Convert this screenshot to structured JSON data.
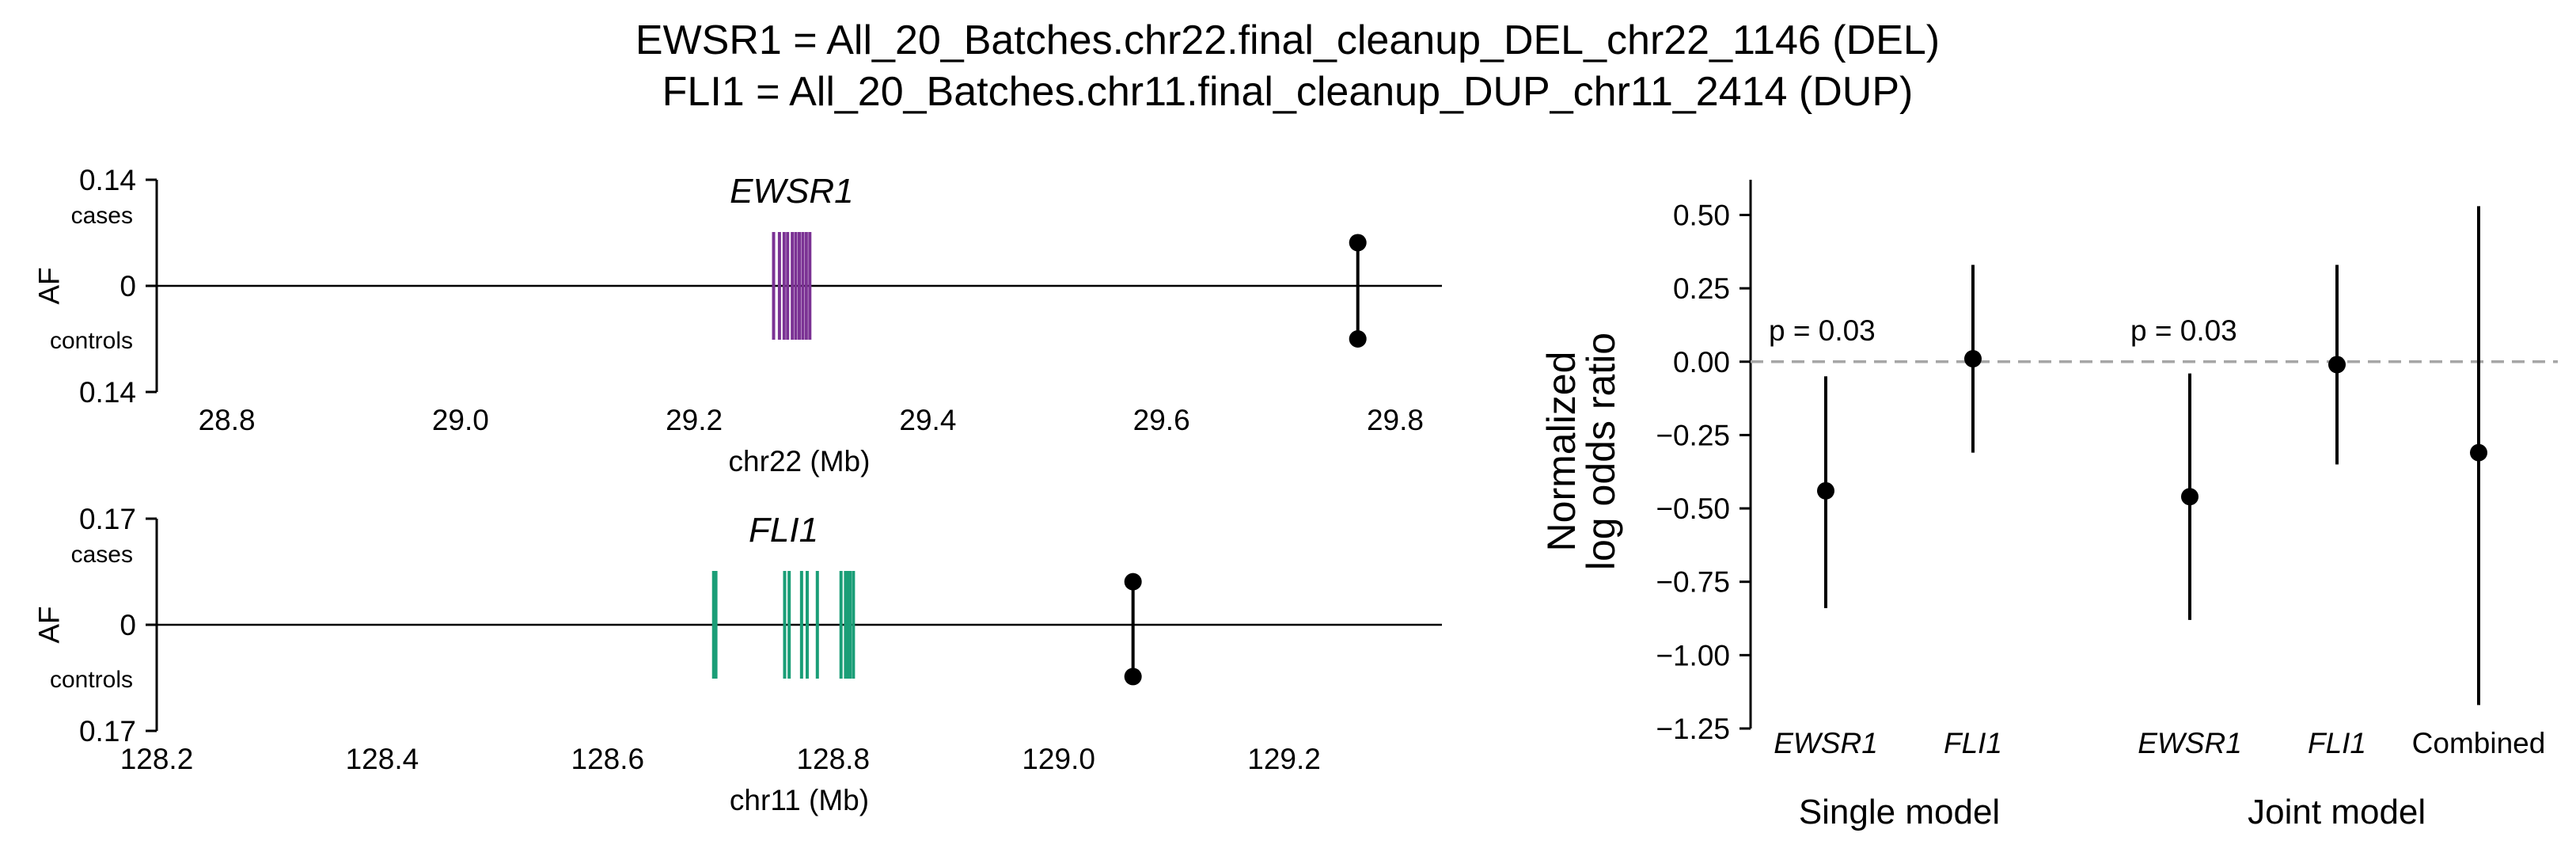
{
  "title_lines": [
    "EWSR1 = All_20_Batches.chr22.final_cleanup_DEL_chr22_1146 (DEL)",
    "FLI1 = All_20_Batches.chr11.final_cleanup_DUP_chr11_2414 (DUP)"
  ],
  "colors": {
    "ewsr1_exons": "#7b3294",
    "fli1_exons": "#1a9e77",
    "reference_line": "#a6a6a6",
    "marker": "#000000"
  },
  "chart_data": [
    {
      "type": "locus",
      "gene": "EWSR1",
      "ylabel": "AF",
      "xlabel": "chr22 (Mb)",
      "xlim": [
        28.74,
        29.84
      ],
      "xticks": [
        28.8,
        29.0,
        29.2,
        29.4,
        29.6,
        29.8
      ],
      "xtick_labels": [
        "28.8",
        "29.0",
        "29.2",
        "29.4",
        "29.6",
        "29.8"
      ],
      "ytick_labels": [
        "0.14",
        "0",
        "0.14"
      ],
      "cases_label": "cases",
      "controls_label": "controls",
      "ylim": [
        -0.14,
        0.14
      ],
      "exons": [
        29.268,
        29.273,
        29.277,
        29.28,
        29.284,
        29.287,
        29.29,
        29.293,
        29.296,
        29.299
      ],
      "af_marker": {
        "x": 29.768,
        "cases": 0.057,
        "controls": -0.07
      }
    },
    {
      "type": "locus",
      "gene": "FLI1",
      "ylabel": "AF",
      "xlabel": "chr11 (Mb)",
      "xlim": [
        128.2,
        129.34
      ],
      "xticks": [
        128.2,
        128.4,
        128.6,
        128.8,
        129.0,
        129.2
      ],
      "xtick_labels": [
        "128.2",
        "128.4",
        "128.6",
        "128.8",
        "129.0",
        "129.2"
      ],
      "ytick_labels": [
        "0.17",
        "0",
        "0.17"
      ],
      "cases_label": "cases",
      "controls_label": "controls",
      "ylim": [
        -0.17,
        0.17
      ],
      "exons": [
        128.694,
        128.696,
        128.757,
        128.761,
        128.772,
        128.777,
        128.786,
        128.807,
        128.811,
        128.813,
        128.815,
        128.818
      ],
      "af_marker": {
        "x": 129.066,
        "cases": 0.069,
        "controls": -0.083
      }
    },
    {
      "type": "errorbar",
      "ylabel_lines": [
        "Normalized",
        "log odds ratio"
      ],
      "ylim": [
        -1.25,
        0.62
      ],
      "yticks": [
        -1.25,
        -1.0,
        -0.75,
        -0.5,
        -0.25,
        0.0,
        0.25,
        0.5
      ],
      "ytick_labels": [
        "−1.25",
        "−1.00",
        "−0.75",
        "−0.50",
        "−0.25",
        "0.00",
        "0.25",
        "0.50"
      ],
      "reference_line": 0,
      "groups": [
        {
          "name": "Single model",
          "p_value": "p = 0.03"
        },
        {
          "name": "Joint model",
          "p_value": "p = 0.03"
        }
      ],
      "points": [
        {
          "label": "EWSR1",
          "group": 0,
          "value": -0.44,
          "lower": -0.84,
          "upper": -0.05
        },
        {
          "label": "FLI1",
          "group": 0,
          "value": 0.01,
          "lower": -0.31,
          "upper": 0.33
        },
        {
          "label": "EWSR1",
          "group": 1,
          "value": -0.46,
          "lower": -0.88,
          "upper": -0.04
        },
        {
          "label": "FLI1",
          "group": 1,
          "value": -0.01,
          "lower": -0.35,
          "upper": 0.33
        },
        {
          "label": "Combined",
          "group": 1,
          "value": -0.31,
          "lower": -1.17,
          "upper": 0.53
        }
      ]
    }
  ]
}
